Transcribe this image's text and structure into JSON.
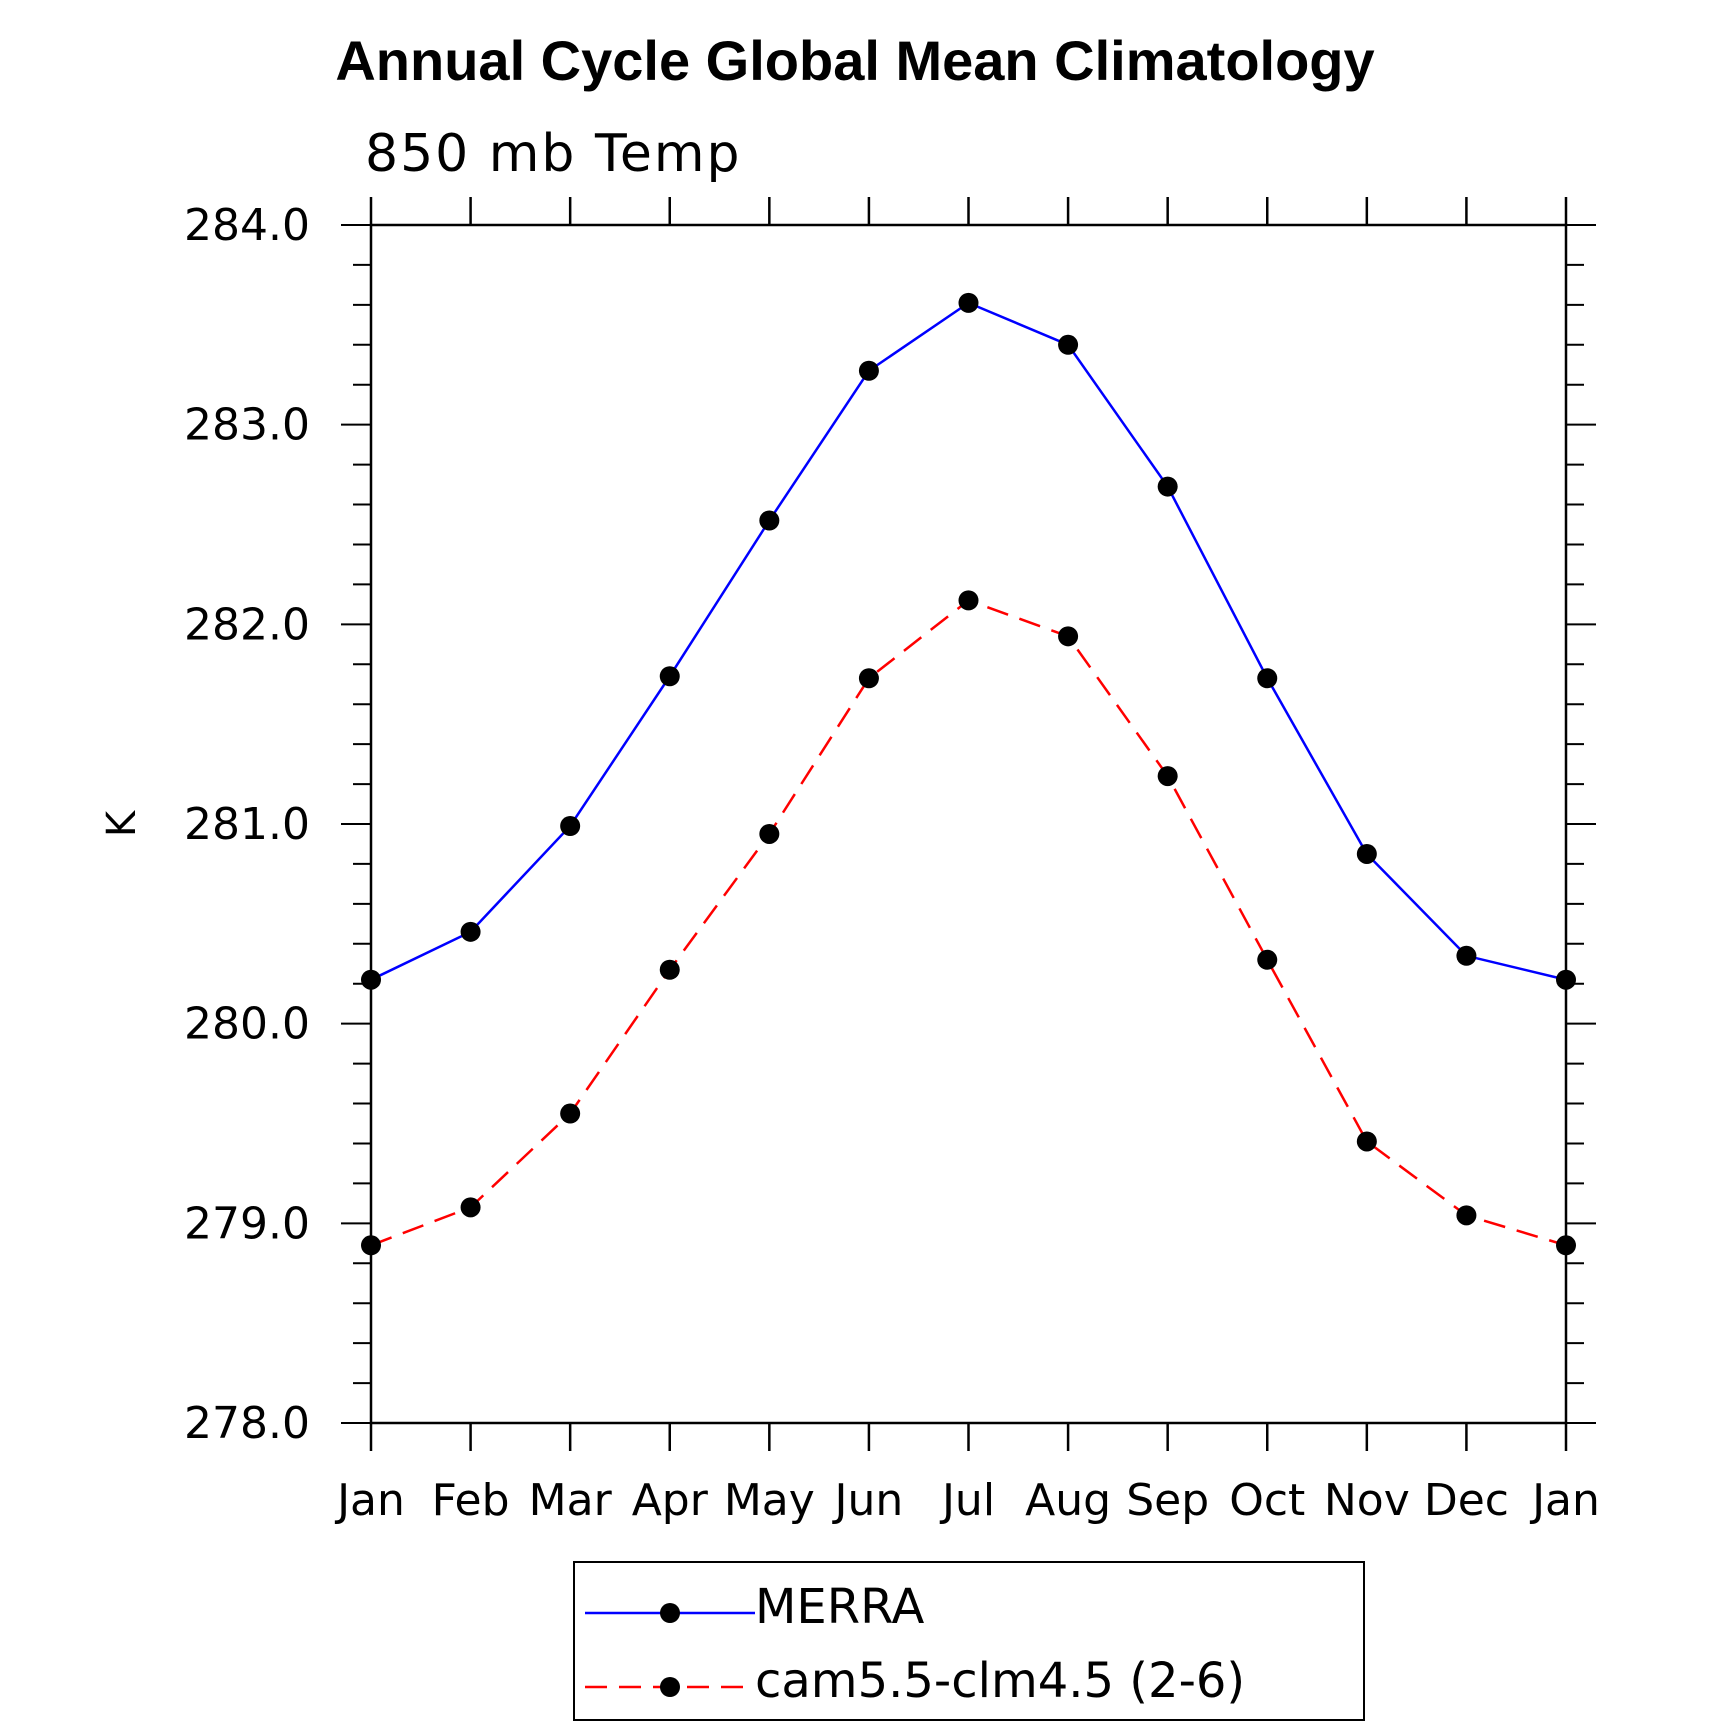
{
  "chart_data": {
    "type": "line",
    "title": "Annual Cycle Global Mean Climatology",
    "subtitle": "850 mb Temp",
    "xlabel": "",
    "ylabel": "K",
    "categories": [
      "Jan",
      "Feb",
      "Mar",
      "Apr",
      "May",
      "Jun",
      "Jul",
      "Aug",
      "Sep",
      "Oct",
      "Nov",
      "Dec",
      "Jan"
    ],
    "ylim": [
      278.0,
      284.0
    ],
    "yticks": [
      "278.0",
      "279.0",
      "280.0",
      "281.0",
      "282.0",
      "283.0",
      "284.0"
    ],
    "grid": false,
    "legend_position": "bottom",
    "series": [
      {
        "name": "MERRA",
        "color": "#0000ff",
        "dash": "solid",
        "values": [
          280.22,
          280.46,
          280.99,
          281.74,
          282.52,
          283.27,
          283.61,
          283.4,
          282.69,
          281.73,
          280.85,
          280.34,
          280.22
        ]
      },
      {
        "name": "cam5.5-clm4.5 (2-6)",
        "color": "#ff0000",
        "dash": "dashed",
        "values": [
          278.89,
          279.08,
          279.55,
          280.27,
          280.95,
          281.73,
          282.12,
          281.94,
          281.24,
          280.32,
          279.41,
          279.04,
          278.89
        ]
      }
    ]
  }
}
